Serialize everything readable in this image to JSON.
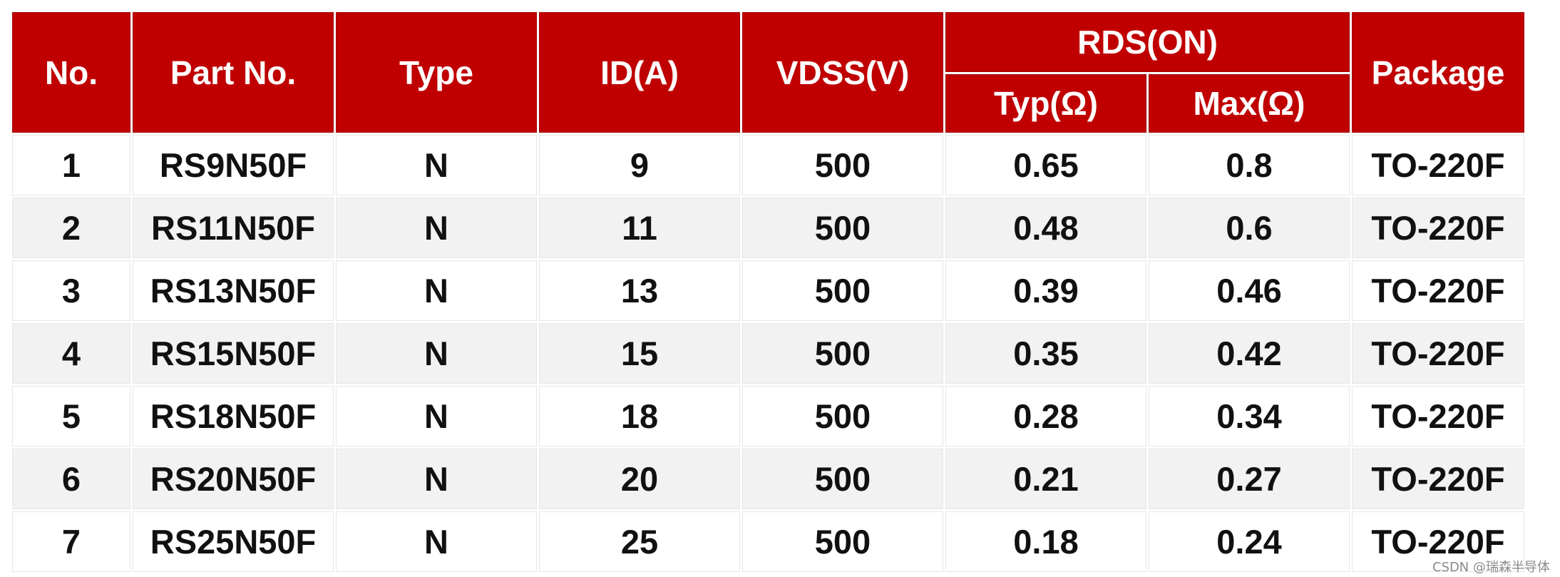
{
  "table": {
    "headers": {
      "no": "No.",
      "part_no": "Part No.",
      "type": "Type",
      "id": "ID(A)",
      "vdss": "VDSS(V)",
      "rds_on": "RDS(ON)",
      "rds_typ": "Typ(Ω)",
      "rds_max": "Max(Ω)",
      "package": "Package"
    },
    "rows": [
      {
        "no": "1",
        "part_no": "RS9N50F",
        "type": "N",
        "id": "9",
        "vdss": "500",
        "typ": "0.65",
        "max": "0.8",
        "package": "TO-220F"
      },
      {
        "no": "2",
        "part_no": "RS11N50F",
        "type": "N",
        "id": "11",
        "vdss": "500",
        "typ": "0.48",
        "max": "0.6",
        "package": "TO-220F"
      },
      {
        "no": "3",
        "part_no": "RS13N50F",
        "type": "N",
        "id": "13",
        "vdss": "500",
        "typ": "0.39",
        "max": "0.46",
        "package": "TO-220F"
      },
      {
        "no": "4",
        "part_no": "RS15N50F",
        "type": "N",
        "id": "15",
        "vdss": "500",
        "typ": "0.35",
        "max": "0.42",
        "package": "TO-220F"
      },
      {
        "no": "5",
        "part_no": "RS18N50F",
        "type": "N",
        "id": "18",
        "vdss": "500",
        "typ": "0.28",
        "max": "0.34",
        "package": "TO-220F"
      },
      {
        "no": "6",
        "part_no": "RS20N50F",
        "type": "N",
        "id": "20",
        "vdss": "500",
        "typ": "0.21",
        "max": "0.27",
        "package": "TO-220F"
      },
      {
        "no": "7",
        "part_no": "RS25N50F",
        "type": "N",
        "id": "25",
        "vdss": "500",
        "typ": "0.18",
        "max": "0.24",
        "package": "TO-220F"
      }
    ]
  },
  "watermark": "CSDN @瑞森半导体",
  "colors": {
    "header_bg": "#c00000",
    "header_text": "#ffffff",
    "row_alt_bg": "#f2f2f2"
  }
}
